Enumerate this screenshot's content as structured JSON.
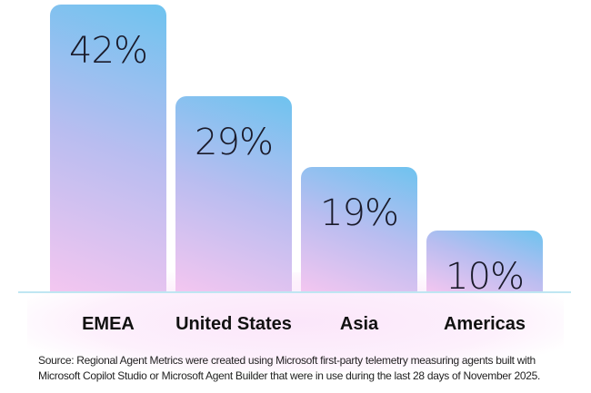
{
  "chart_data": {
    "type": "bar",
    "categories": [
      "EMEA",
      "United States",
      "Asia",
      "Americas"
    ],
    "values": [
      42,
      29,
      19,
      10
    ],
    "data_labels": [
      "42%",
      "29%",
      "19%",
      "10%"
    ],
    "title": "",
    "xlabel": "",
    "ylabel": "",
    "grid": false,
    "colors": {
      "bar_top": "#6ec3ef",
      "bar_bottom": "#f4c6f0",
      "axis": "#bfe6f2"
    }
  },
  "source": "Source: Regional Agent Metrics were created using Microsoft first-party telemetry measuring agents built with Microsoft Copilot Studio or Microsoft Agent Builder that were in use during the last 28 days of November 2025."
}
